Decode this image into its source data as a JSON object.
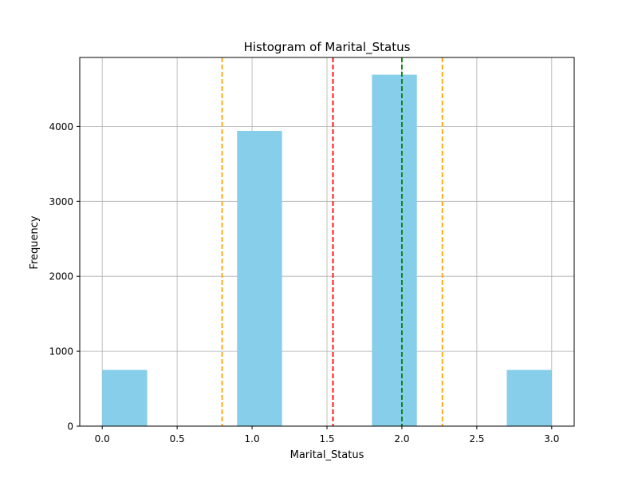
{
  "chart_data": {
    "type": "bar",
    "title": "Histogram of Marital_Status",
    "xlabel": "Marital_Status",
    "ylabel": "Frequency",
    "xlim": [
      -0.15,
      3.15
    ],
    "ylim": [
      0,
      4920
    ],
    "grid": true,
    "bar_color": "#87ceeb",
    "bins": [
      {
        "x0": 0.0,
        "x1": 0.3,
        "value": 750
      },
      {
        "x0": 0.3,
        "x1": 0.6,
        "value": 0
      },
      {
        "x0": 0.6,
        "x1": 0.9,
        "value": 0
      },
      {
        "x0": 0.9,
        "x1": 1.2,
        "value": 3940
      },
      {
        "x0": 1.2,
        "x1": 1.5,
        "value": 0
      },
      {
        "x0": 1.5,
        "x1": 1.8,
        "value": 0
      },
      {
        "x0": 1.8,
        "x1": 2.1,
        "value": 4690
      },
      {
        "x0": 2.1,
        "x1": 2.4,
        "value": 0
      },
      {
        "x0": 2.4,
        "x1": 2.7,
        "value": 0
      },
      {
        "x0": 2.7,
        "x1": 3.0,
        "value": 750
      }
    ],
    "xticks": [
      {
        "value": 0.0,
        "label": "0.0"
      },
      {
        "value": 0.5,
        "label": "0.5"
      },
      {
        "value": 1.0,
        "label": "1.0"
      },
      {
        "value": 1.5,
        "label": "1.5"
      },
      {
        "value": 2.0,
        "label": "2.0"
      },
      {
        "value": 2.5,
        "label": "2.5"
      },
      {
        "value": 3.0,
        "label": "3.0"
      }
    ],
    "yticks": [
      {
        "value": 0,
        "label": "0"
      },
      {
        "value": 1000,
        "label": "1000"
      },
      {
        "value": 2000,
        "label": "2000"
      },
      {
        "value": 3000,
        "label": "3000"
      },
      {
        "value": 4000,
        "label": "4000"
      }
    ],
    "reference_lines": [
      {
        "x": 0.8,
        "color": "#ffa500"
      },
      {
        "x": 1.54,
        "color": "#ff0000"
      },
      {
        "x": 2.0,
        "color": "#008000"
      },
      {
        "x": 2.27,
        "color": "#ffa500"
      }
    ]
  }
}
